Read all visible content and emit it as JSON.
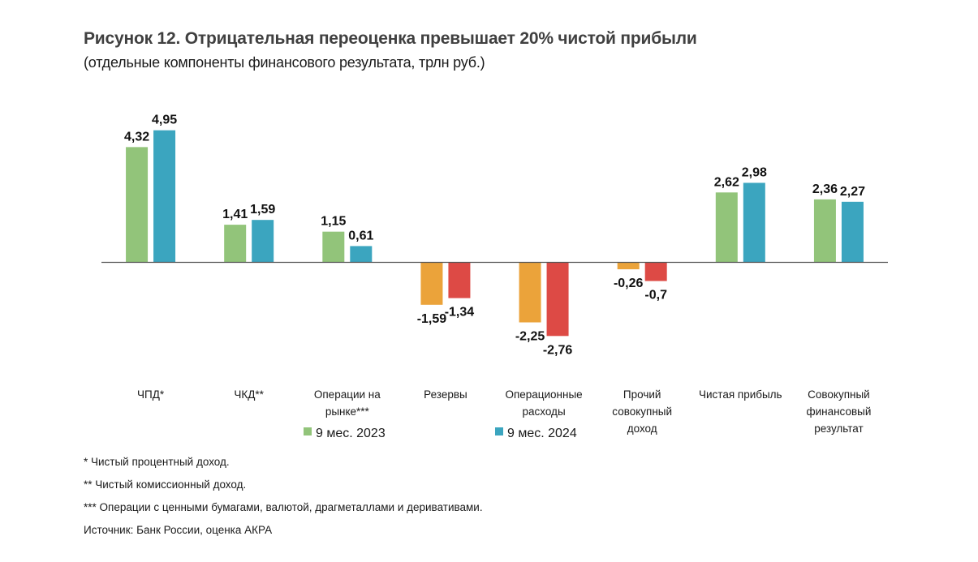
{
  "title": "Рисунок 12. Отрицательная переоценка превышает 20% чистой прибыли",
  "subtitle": "(отдельные компоненты финансового результата, трлн руб.)",
  "chart_data": {
    "type": "bar",
    "title": "Рисунок 12. Отрицательная переоценка превышает 20% чистой прибыли",
    "subtitle": "(отдельные компоненты финансового результата, трлн руб.)",
    "xlabel": "",
    "ylabel": "трлн руб.",
    "ylim": [
      -3,
      5.2
    ],
    "grid": false,
    "legend_position": "bottom",
    "categories": [
      [
        "ЧПД*"
      ],
      [
        "ЧКД**"
      ],
      [
        "Операции на",
        "рынке***"
      ],
      [
        "Резервы"
      ],
      [
        "Операционные",
        "расходы"
      ],
      [
        "Прочий",
        "совокупный",
        "доход"
      ],
      [
        "Чистая прибыль"
      ],
      [
        "Совокупный",
        "финансовый",
        "результат"
      ]
    ],
    "series": [
      {
        "name": "9 мес. 2023",
        "color": "#92c47a",
        "negative_color": "#eba33a",
        "values": [
          4.32,
          1.41,
          1.15,
          -1.59,
          -2.25,
          -0.26,
          2.62,
          2.36
        ],
        "labels": [
          "4,32",
          "1,41",
          "1,15",
          "-1,59",
          "-2,25",
          "-0,26",
          "2,62",
          "2,36"
        ]
      },
      {
        "name": "9 мес. 2024",
        "color": "#3ba5bf",
        "negative_color": "#dd4a45",
        "values": [
          4.95,
          1.59,
          0.61,
          -1.34,
          -2.76,
          -0.7,
          2.98,
          2.27
        ],
        "labels": [
          "4,95",
          "1,59",
          "0,61",
          "-1,34",
          "-2,76",
          "-0,7",
          "2,98",
          "2,27"
        ]
      }
    ]
  },
  "legend": [
    {
      "label": "9 мес. 2023",
      "color": "#92c47a"
    },
    {
      "label": "9 мес. 2024",
      "color": "#3ba5bf"
    }
  ],
  "notes": [
    "* Чистый процентный доход.",
    "** Чистый комиссионный доход.",
    "*** Операции с ценными бумагами, валютой, драгметаллами и деривативами.",
    "Источник: Банк России, оценка АКРА"
  ]
}
